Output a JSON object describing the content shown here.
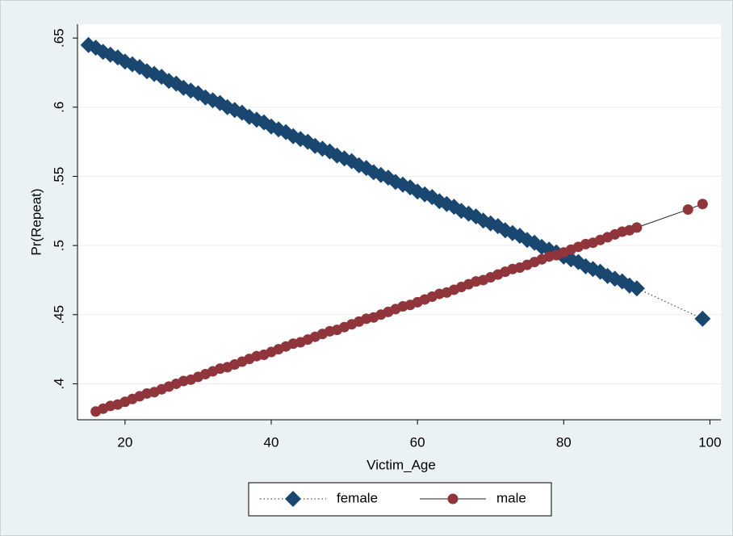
{
  "chart_data": {
    "type": "scatter",
    "x_label": "Victim_Age",
    "y_label": "Pr(Repeat)",
    "xlim": [
      13.5,
      101.5
    ],
    "xticks": [
      20,
      40,
      60,
      80,
      100
    ],
    "ylim": [
      0.374,
      0.66
    ],
    "yticks": [
      {
        "value": 0.4,
        "label": ".4"
      },
      {
        "value": 0.45,
        "label": ".45"
      },
      {
        "value": 0.5,
        "label": ".5"
      },
      {
        "value": 0.55,
        "label": ".55"
      },
      {
        "value": 0.6,
        "label": ".6"
      },
      {
        "value": 0.65,
        "label": ".65"
      }
    ],
    "grid": true,
    "legend": "bottom",
    "series": [
      {
        "name": "female",
        "color": "#1a476f",
        "marker": "diamond",
        "line": "dot",
        "x": [
          15,
          16,
          17,
          18,
          19,
          20,
          21,
          22,
          23,
          24,
          25,
          26,
          27,
          28,
          29,
          30,
          31,
          32,
          33,
          34,
          35,
          36,
          37,
          38,
          39,
          40,
          41,
          42,
          43,
          44,
          45,
          46,
          47,
          48,
          49,
          50,
          51,
          52,
          53,
          54,
          55,
          56,
          57,
          58,
          59,
          60,
          61,
          62,
          63,
          64,
          65,
          66,
          67,
          68,
          69,
          70,
          71,
          72,
          73,
          74,
          75,
          76,
          77,
          78,
          79,
          80,
          81,
          82,
          83,
          84,
          85,
          86,
          87,
          88,
          89,
          90,
          99
        ],
        "values": [
          0.645,
          0.643,
          0.64,
          0.638,
          0.636,
          0.633,
          0.631,
          0.629,
          0.626,
          0.624,
          0.622,
          0.619,
          0.617,
          0.614,
          0.612,
          0.61,
          0.607,
          0.605,
          0.603,
          0.6,
          0.598,
          0.596,
          0.593,
          0.591,
          0.589,
          0.586,
          0.584,
          0.582,
          0.579,
          0.577,
          0.575,
          0.572,
          0.57,
          0.568,
          0.565,
          0.563,
          0.561,
          0.558,
          0.556,
          0.553,
          0.551,
          0.549,
          0.546,
          0.544,
          0.542,
          0.539,
          0.537,
          0.535,
          0.532,
          0.53,
          0.528,
          0.525,
          0.523,
          0.521,
          0.518,
          0.516,
          0.514,
          0.511,
          0.509,
          0.507,
          0.504,
          0.502,
          0.499,
          0.497,
          0.495,
          0.492,
          0.49,
          0.488,
          0.485,
          0.483,
          0.481,
          0.478,
          0.476,
          0.474,
          0.471,
          0.469,
          0.447
        ]
      },
      {
        "name": "male",
        "color": "#90353b",
        "marker": "circle",
        "line": "solid",
        "x": [
          16,
          17,
          18,
          19,
          20,
          21,
          22,
          23,
          24,
          25,
          26,
          27,
          28,
          29,
          30,
          31,
          32,
          33,
          34,
          35,
          36,
          37,
          38,
          39,
          40,
          41,
          42,
          43,
          44,
          45,
          46,
          47,
          48,
          49,
          50,
          51,
          52,
          53,
          54,
          55,
          56,
          57,
          58,
          59,
          60,
          61,
          62,
          63,
          64,
          65,
          66,
          67,
          68,
          69,
          70,
          71,
          72,
          73,
          74,
          75,
          76,
          77,
          78,
          79,
          80,
          81,
          82,
          83,
          84,
          85,
          86,
          87,
          88,
          89,
          90,
          97,
          99
        ],
        "values": [
          0.38,
          0.382,
          0.384,
          0.385,
          0.387,
          0.389,
          0.391,
          0.393,
          0.394,
          0.396,
          0.398,
          0.4,
          0.402,
          0.403,
          0.405,
          0.407,
          0.409,
          0.411,
          0.412,
          0.414,
          0.416,
          0.418,
          0.42,
          0.421,
          0.423,
          0.425,
          0.427,
          0.429,
          0.43,
          0.432,
          0.434,
          0.436,
          0.438,
          0.439,
          0.441,
          0.443,
          0.445,
          0.447,
          0.448,
          0.45,
          0.452,
          0.454,
          0.456,
          0.457,
          0.459,
          0.461,
          0.463,
          0.465,
          0.466,
          0.468,
          0.47,
          0.472,
          0.474,
          0.475,
          0.477,
          0.479,
          0.481,
          0.483,
          0.484,
          0.486,
          0.488,
          0.49,
          0.492,
          0.493,
          0.495,
          0.497,
          0.499,
          0.501,
          0.502,
          0.504,
          0.506,
          0.508,
          0.51,
          0.511,
          0.513,
          0.526,
          0.53
        ]
      }
    ]
  }
}
